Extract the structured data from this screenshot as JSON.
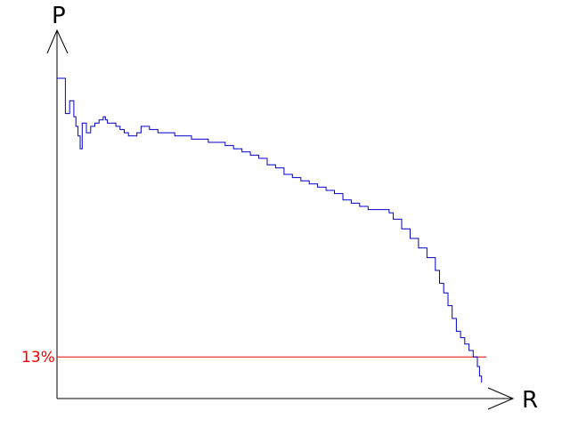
{
  "chart_data": {
    "type": "line",
    "title": "",
    "xlabel": "R",
    "ylabel": "P",
    "xlim": [
      0,
      1
    ],
    "ylim": [
      0,
      1
    ],
    "grid": false,
    "series": [
      {
        "color": "#0000cc",
        "step": true,
        "x": [
          0.0,
          0.02,
          0.03,
          0.04,
          0.045,
          0.05,
          0.055,
          0.06,
          0.07,
          0.08,
          0.09,
          0.1,
          0.11,
          0.115,
          0.12,
          0.13,
          0.14,
          0.15,
          0.16,
          0.17,
          0.18,
          0.19,
          0.2,
          0.22,
          0.24,
          0.26,
          0.28,
          0.3,
          0.32,
          0.34,
          0.36,
          0.38,
          0.4,
          0.42,
          0.44,
          0.46,
          0.48,
          0.5,
          0.52,
          0.54,
          0.56,
          0.58,
          0.6,
          0.62,
          0.64,
          0.66,
          0.68,
          0.7,
          0.72,
          0.74,
          0.76,
          0.78,
          0.79,
          0.8,
          0.82,
          0.84,
          0.86,
          0.88,
          0.9,
          0.91,
          0.92,
          0.93,
          0.94,
          0.95,
          0.96,
          0.97,
          0.98,
          0.99,
          1.0,
          1.005,
          1.01
        ],
        "y": [
          1.0,
          0.89,
          0.93,
          0.88,
          0.85,
          0.82,
          0.78,
          0.86,
          0.83,
          0.85,
          0.86,
          0.87,
          0.88,
          0.87,
          0.86,
          0.86,
          0.85,
          0.84,
          0.83,
          0.82,
          0.82,
          0.83,
          0.85,
          0.84,
          0.83,
          0.83,
          0.82,
          0.82,
          0.81,
          0.81,
          0.8,
          0.8,
          0.79,
          0.78,
          0.77,
          0.76,
          0.75,
          0.73,
          0.72,
          0.7,
          0.69,
          0.68,
          0.67,
          0.66,
          0.65,
          0.64,
          0.62,
          0.61,
          0.6,
          0.59,
          0.59,
          0.59,
          0.58,
          0.56,
          0.53,
          0.5,
          0.47,
          0.44,
          0.4,
          0.36,
          0.33,
          0.29,
          0.25,
          0.21,
          0.19,
          0.17,
          0.15,
          0.13,
          0.1,
          0.07,
          0.05
        ]
      }
    ],
    "reference_line": {
      "label": "13%",
      "y": 0.13,
      "color": "#ee0000"
    }
  }
}
